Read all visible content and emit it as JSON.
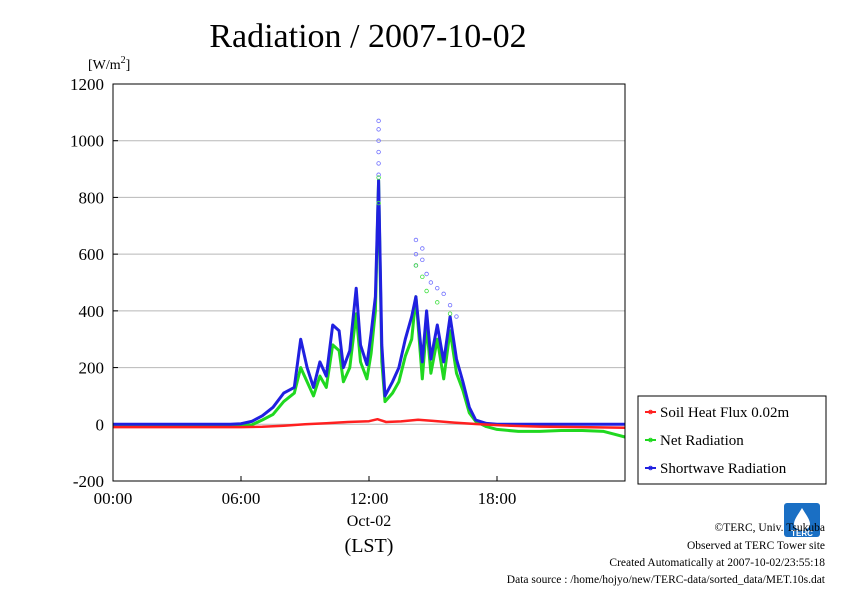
{
  "chart_data": {
    "type": "line",
    "title": "Radiation / 2007-10-02",
    "unit_label_base": "[W/m",
    "unit_label_sup": "2",
    "unit_label_end": "]",
    "ylim": [
      -200,
      1200
    ],
    "yticks": [
      -200,
      0,
      200,
      400,
      600,
      800,
      1000,
      1200
    ],
    "xlim_hours": [
      0,
      24
    ],
    "xticks": [
      {
        "hour": 0,
        "label": "00:00"
      },
      {
        "hour": 6,
        "label": "06:00"
      },
      {
        "hour": 12,
        "label": "12:00"
      },
      {
        "hour": 18,
        "label": "18:00"
      }
    ],
    "xdate_label": "Oct-02",
    "xunit_label": "(LST)",
    "grid": true,
    "legend_position": "right",
    "series": [
      {
        "name": "Soil Heat Flux 0.02m",
        "color": "#ff2020",
        "points": [
          [
            0,
            -10
          ],
          [
            3,
            -10
          ],
          [
            6,
            -10
          ],
          [
            7,
            -9
          ],
          [
            8,
            -5
          ],
          [
            9,
            0
          ],
          [
            10,
            4
          ],
          [
            11,
            8
          ],
          [
            12,
            11
          ],
          [
            12.4,
            18
          ],
          [
            12.8,
            8
          ],
          [
            13.5,
            10
          ],
          [
            14.3,
            16
          ],
          [
            15,
            12
          ],
          [
            16,
            6
          ],
          [
            17,
            1
          ],
          [
            18,
            -3
          ],
          [
            19,
            -6
          ],
          [
            20,
            -8
          ],
          [
            22,
            -10
          ],
          [
            24,
            -12
          ]
        ]
      },
      {
        "name": "Net Radiation",
        "color": "#20d820",
        "points": [
          [
            0,
            -5
          ],
          [
            5.5,
            -5
          ],
          [
            6,
            -4
          ],
          [
            6.5,
            -2
          ],
          [
            7,
            15
          ],
          [
            7.5,
            35
          ],
          [
            8,
            80
          ],
          [
            8.5,
            110
          ],
          [
            8.8,
            200
          ],
          [
            9.1,
            150
          ],
          [
            9.4,
            100
          ],
          [
            9.7,
            170
          ],
          [
            10,
            130
          ],
          [
            10.3,
            280
          ],
          [
            10.6,
            260
          ],
          [
            10.8,
            150
          ],
          [
            11.1,
            200
          ],
          [
            11.4,
            390
          ],
          [
            11.6,
            220
          ],
          [
            11.9,
            160
          ],
          [
            12.1,
            250
          ],
          [
            12.3,
            400
          ],
          [
            12.45,
            860
          ],
          [
            12.6,
            220
          ],
          [
            12.75,
            80
          ],
          [
            13.1,
            110
          ],
          [
            13.4,
            150
          ],
          [
            13.7,
            240
          ],
          [
            14.0,
            300
          ],
          [
            14.2,
            450
          ],
          [
            14.5,
            160
          ],
          [
            14.7,
            350
          ],
          [
            14.9,
            180
          ],
          [
            15.2,
            300
          ],
          [
            15.5,
            160
          ],
          [
            15.8,
            330
          ],
          [
            16.1,
            180
          ],
          [
            16.4,
            120
          ],
          [
            16.7,
            40
          ],
          [
            17.0,
            10
          ],
          [
            17.5,
            -8
          ],
          [
            18,
            -18
          ],
          [
            19,
            -25
          ],
          [
            20,
            -25
          ],
          [
            21,
            -22
          ],
          [
            22,
            -22
          ],
          [
            23,
            -25
          ],
          [
            23.5,
            -35
          ],
          [
            24,
            -45
          ]
        ]
      },
      {
        "name": "Shortwave Radiation",
        "color": "#2020e0",
        "points": [
          [
            0,
            0
          ],
          [
            5.5,
            0
          ],
          [
            6,
            2
          ],
          [
            6.5,
            10
          ],
          [
            7,
            30
          ],
          [
            7.5,
            60
          ],
          [
            8,
            110
          ],
          [
            8.5,
            130
          ],
          [
            8.8,
            300
          ],
          [
            9.1,
            200
          ],
          [
            9.4,
            130
          ],
          [
            9.7,
            220
          ],
          [
            10,
            170
          ],
          [
            10.3,
            350
          ],
          [
            10.6,
            330
          ],
          [
            10.8,
            200
          ],
          [
            11.1,
            260
          ],
          [
            11.4,
            480
          ],
          [
            11.6,
            280
          ],
          [
            11.9,
            210
          ],
          [
            12.1,
            320
          ],
          [
            12.3,
            450
          ],
          [
            12.45,
            860
          ],
          [
            12.6,
            280
          ],
          [
            12.75,
            100
          ],
          [
            13.1,
            150
          ],
          [
            13.4,
            200
          ],
          [
            13.7,
            300
          ],
          [
            14.0,
            380
          ],
          [
            14.2,
            450
          ],
          [
            14.5,
            220
          ],
          [
            14.7,
            400
          ],
          [
            14.9,
            230
          ],
          [
            15.2,
            350
          ],
          [
            15.5,
            220
          ],
          [
            15.8,
            380
          ],
          [
            16.1,
            230
          ],
          [
            16.4,
            150
          ],
          [
            16.7,
            60
          ],
          [
            17.0,
            15
          ],
          [
            17.5,
            3
          ],
          [
            18,
            0
          ],
          [
            24,
            0
          ]
        ]
      }
    ],
    "scatter_outliers": [
      {
        "color": "#7070ff",
        "points": [
          [
            12.45,
            1070
          ],
          [
            12.45,
            1040
          ],
          [
            12.45,
            1000
          ],
          [
            12.45,
            960
          ],
          [
            12.45,
            920
          ],
          [
            12.45,
            880
          ],
          [
            14.2,
            650
          ],
          [
            14.2,
            600
          ],
          [
            14.2,
            560
          ],
          [
            14.5,
            620
          ],
          [
            14.5,
            580
          ],
          [
            14.7,
            530
          ],
          [
            14.9,
            500
          ],
          [
            15.2,
            480
          ],
          [
            15.5,
            460
          ],
          [
            15.8,
            420
          ],
          [
            16.1,
            380
          ]
        ]
      },
      {
        "color": "#40e040",
        "points": [
          [
            12.45,
            870
          ],
          [
            12.45,
            780
          ],
          [
            14.2,
            560
          ],
          [
            14.5,
            520
          ],
          [
            14.7,
            470
          ],
          [
            15.2,
            430
          ],
          [
            15.8,
            390
          ]
        ]
      }
    ]
  },
  "legend": {
    "items": [
      {
        "label": "Soil Heat Flux 0.02m",
        "color": "#ff2020"
      },
      {
        "label": "Net Radiation",
        "color": "#20d820"
      },
      {
        "label": "Shortwave Radiation",
        "color": "#2020e0"
      }
    ]
  },
  "footer": {
    "copyright": "©TERC, Univ. Tsukuba",
    "observed": "Observed at TERC Tower site",
    "created": "Created Automatically at 2007-10-02/23:55:18",
    "source": "Data source : /home/hojyo/new/TERC-data/sorted_data/MET.10s.dat"
  },
  "logo": {
    "text": "TERC",
    "color": "#1a6fc4"
  }
}
